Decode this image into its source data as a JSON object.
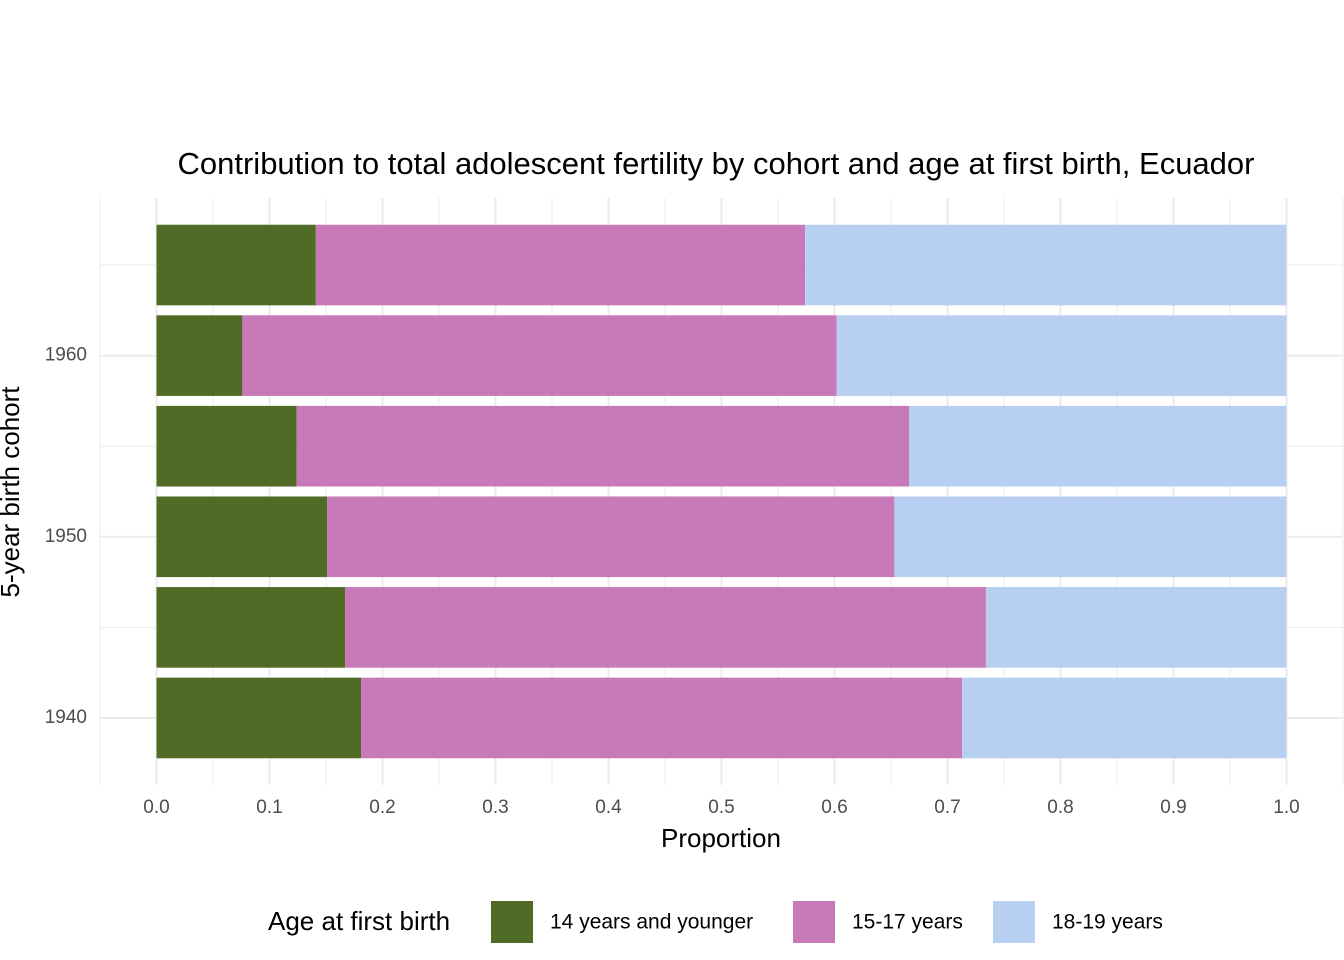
{
  "chart_data": {
    "type": "stacked-horizontal-bar",
    "title": "Contribution to total adolescent fertility by cohort and age at first birth,  Ecuador",
    "x_label": "Proportion",
    "y_label": "5-year birth cohort",
    "legend_title": "Age at first birth",
    "legend_position": "bottom",
    "y": [
      1940,
      1945,
      1950,
      1955,
      1960,
      1965
    ],
    "series": [
      {
        "name": "14 years and younger",
        "color": "#4f6b25",
        "values": [
          0.181,
          0.167,
          0.151,
          0.124,
          0.076,
          0.141
        ]
      },
      {
        "name": "15-17 years",
        "color": "#c879b8",
        "values": [
          0.532,
          0.567,
          0.502,
          0.542,
          0.526,
          0.433
        ]
      },
      {
        "name": "18-19 years",
        "color": "#b7cff0",
        "values": [
          0.287,
          0.266,
          0.347,
          0.334,
          0.398,
          0.426
        ]
      }
    ],
    "xlim": [
      -0.05,
      1.05
    ],
    "xticks": [
      {
        "value": 0,
        "label": "0.0"
      },
      0.1,
      0.2,
      0.3,
      0.4,
      0.5,
      0.6,
      0.7,
      0.8,
      0.9,
      {
        "value": 1,
        "label": "1.0"
      }
    ],
    "x_minor_ticks": [
      -0.05,
      0.05,
      0.15,
      0.25,
      0.35,
      0.45,
      0.55,
      0.65,
      0.75,
      0.85,
      0.95,
      1.05
    ],
    "ylim": [
      1936.3,
      1968.7
    ],
    "yticks": [
      1940,
      1950,
      1960
    ],
    "y_minor_ticks": [
      1945,
      1955,
      1965
    ],
    "grid": true
  }
}
